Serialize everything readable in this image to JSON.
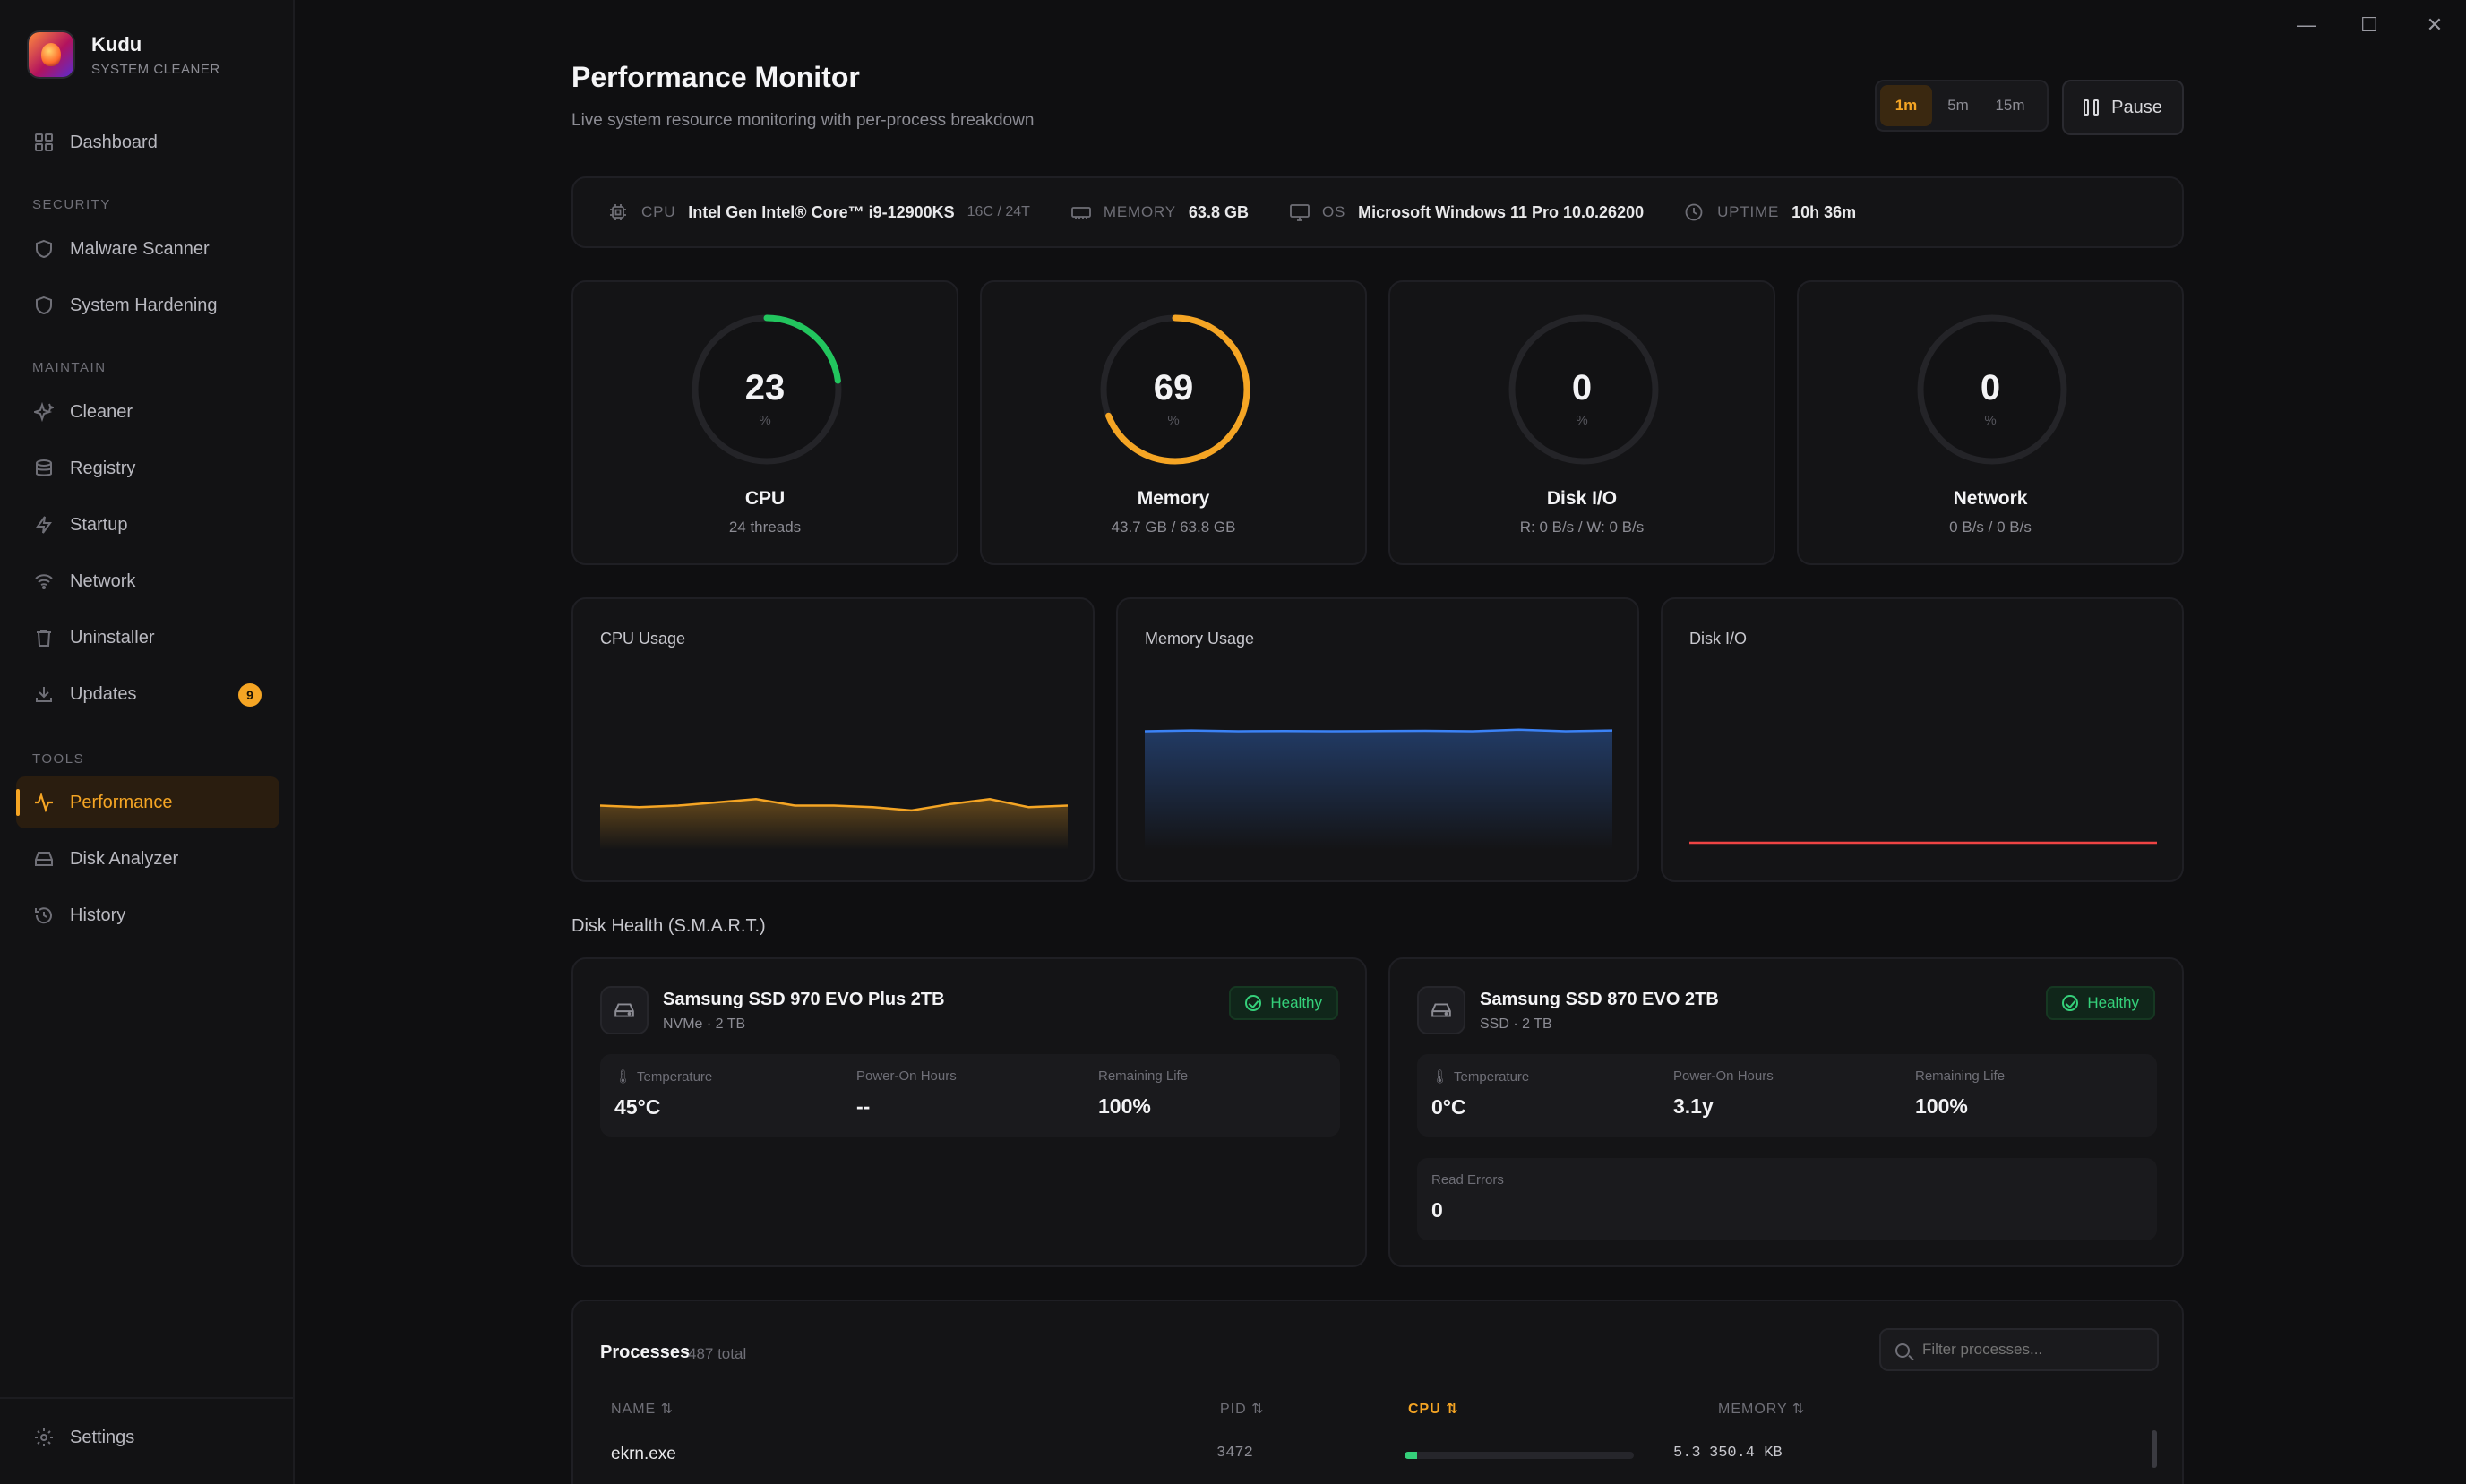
{
  "app": {
    "name": "Kudu",
    "subtitle": "SYSTEM CLEANER"
  },
  "window_controls": {
    "minimize": "—",
    "maximize": "☐",
    "close": "✕"
  },
  "sidebar": {
    "dashboard": "Dashboard",
    "sections": {
      "security": "SECURITY",
      "maintain": "MAINTAIN",
      "tools": "TOOLS"
    },
    "items": {
      "malware": "Malware Scanner",
      "hardening": "System Hardening",
      "cleaner": "Cleaner",
      "registry": "Registry",
      "startup": "Startup",
      "network": "Network",
      "uninstaller": "Uninstaller",
      "updates": "Updates",
      "updates_badge": "9",
      "performance": "Performance",
      "disk_analyzer": "Disk Analyzer",
      "history": "History"
    },
    "settings": "Settings",
    "active": "performance",
    "accent": "#f5a524"
  },
  "header": {
    "title": "Performance Monitor",
    "subtitle": "Live system resource monitoring with per-process breakdown",
    "ranges": [
      "1m",
      "5m",
      "15m"
    ],
    "active_range": "1m",
    "pause_label": "Pause"
  },
  "system_info": {
    "cpu_key": "CPU",
    "cpu_value": "Intel Gen Intel® Core™ i9-12900KS",
    "cpu_extra": "16C / 24T",
    "memory_key": "MEMORY",
    "memory_value": "63.8 GB",
    "os_key": "OS",
    "os_value": "Microsoft Windows 11 Pro 10.0.26200",
    "uptime_key": "UPTIME",
    "uptime_value": "10h 36m"
  },
  "gauges": [
    {
      "value": "23",
      "unit": "%",
      "name": "CPU",
      "sub": "24 threads",
      "percent": 23,
      "color": "#22c55e"
    },
    {
      "value": "69",
      "unit": "%",
      "name": "Memory",
      "sub": "43.7 GB / 63.8 GB",
      "percent": 69,
      "color": "#f5a524"
    },
    {
      "value": "0",
      "unit": "%",
      "name": "Disk I/O",
      "sub": "R: 0 B/s / W: 0 B/s",
      "percent": 0,
      "color": "#f5a524"
    },
    {
      "value": "0",
      "unit": "%",
      "name": "Network",
      "sub": "0 B/s / 0 B/s",
      "percent": 0,
      "color": "#f5a524"
    }
  ],
  "charts": {
    "cpu_title": "CPU Usage",
    "memory_title": "Memory Usage",
    "disk_title": "Disk I/O",
    "cpu_color": "#f5a524",
    "memory_color": "#3b82f6",
    "disk_color": "#ef4444"
  },
  "chart_data": [
    {
      "type": "area",
      "title": "CPU Usage",
      "values": [
        23,
        22,
        23,
        25,
        27,
        23,
        23,
        22,
        20,
        24,
        27,
        22,
        23
      ],
      "ylim": [
        0,
        100
      ]
    },
    {
      "type": "area",
      "title": "Memory Usage",
      "values": [
        69,
        69.5,
        69,
        69.2,
        69,
        69.1,
        69.3,
        69,
        70,
        69,
        69.5
      ],
      "ylim": [
        0,
        100
      ]
    },
    {
      "type": "line",
      "title": "Disk I/O",
      "values": [
        0,
        0,
        0,
        0,
        0,
        0,
        0,
        0,
        0,
        0
      ],
      "ylim": [
        0,
        100
      ]
    }
  ],
  "disk_health": {
    "title": "Disk Health (S.M.A.R.T.)",
    "disks": [
      {
        "name": "Samsung SSD 970 EVO Plus 2TB",
        "type": "NVMe · 2 TB",
        "status": "Healthy",
        "temp_label": "Temperature",
        "temp": "45°C",
        "hours_label": "Power-On Hours",
        "hours": "--",
        "life_label": "Remaining Life",
        "life": "100%"
      },
      {
        "name": "Samsung SSD 870 EVO 2TB",
        "type": "SSD · 2 TB",
        "status": "Healthy",
        "temp_label": "Temperature",
        "temp": "0°C",
        "hours_label": "Power-On Hours",
        "hours": "3.1y",
        "life_label": "Remaining Life",
        "life": "100%",
        "errors_label": "Read Errors",
        "errors": "0"
      }
    ]
  },
  "processes": {
    "title": "Processes",
    "count": "487 total",
    "filter_placeholder": "Filter processes...",
    "columns": {
      "name": "NAME ⇅",
      "pid": "PID ⇅",
      "cpu": "CPU ⇅",
      "memory": "MEMORY ⇅"
    },
    "rows": [
      {
        "name": "ekrn.exe",
        "pid": "3472",
        "cpu": "5.3",
        "cpu_percent": 5.3,
        "memory": "350.4 KB"
      }
    ]
  }
}
